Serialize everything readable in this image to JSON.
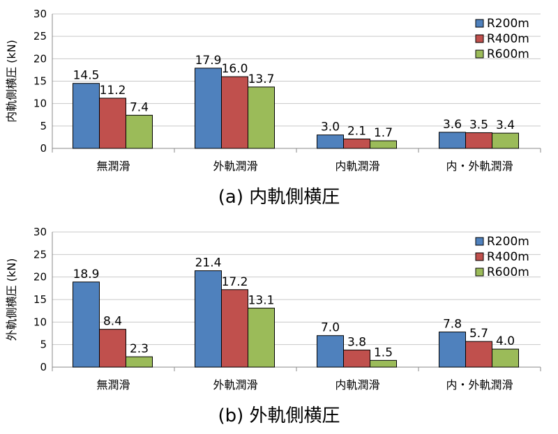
{
  "chart_data": [
    {
      "type": "bar",
      "caption": "(a) 内軌側横圧",
      "ylabel": "内軌側横圧 (kN)",
      "ylim": [
        0,
        30
      ],
      "yticks": [
        "0",
        "5",
        "10",
        "15",
        "20",
        "25",
        "30"
      ],
      "categories": [
        "無潤滑",
        "外軌潤滑",
        "内軌潤滑",
        "内・外軌潤滑"
      ],
      "series": [
        {
          "name": "R200m",
          "color": "#4f81bd",
          "values": [
            14.5,
            17.9,
            3.0,
            3.6
          ],
          "labels": [
            "14.5",
            "17.9",
            "3.0",
            "3.6"
          ]
        },
        {
          "name": "R400m",
          "color": "#c0504d",
          "values": [
            11.2,
            16.0,
            2.1,
            3.5
          ],
          "labels": [
            "11.2",
            "16.0",
            "2.1",
            "3.5"
          ]
        },
        {
          "name": "R600m",
          "color": "#9bbb59",
          "values": [
            7.4,
            13.7,
            1.7,
            3.4
          ],
          "labels": [
            "7.4",
            "13.7",
            "1.7",
            "3.4"
          ]
        }
      ],
      "grid": true,
      "legend": "top-right"
    },
    {
      "type": "bar",
      "caption": "(b) 外軌側横圧",
      "ylabel": "外軌側横圧 (kN)",
      "ylim": [
        0,
        30
      ],
      "yticks": [
        "0",
        "5",
        "10",
        "15",
        "20",
        "25",
        "30"
      ],
      "categories": [
        "無潤滑",
        "外軌潤滑",
        "内軌潤滑",
        "内・外軌潤滑"
      ],
      "series": [
        {
          "name": "R200m",
          "color": "#4f81bd",
          "values": [
            18.9,
            21.4,
            7.0,
            7.8
          ],
          "labels": [
            "18.9",
            "21.4",
            "7.0",
            "7.8"
          ]
        },
        {
          "name": "R400m",
          "color": "#c0504d",
          "values": [
            8.4,
            17.2,
            3.8,
            5.7
          ],
          "labels": [
            "8.4",
            "17.2",
            "3.8",
            "5.7"
          ]
        },
        {
          "name": "R600m",
          "color": "#9bbb59",
          "values": [
            2.3,
            13.1,
            1.5,
            4.0
          ],
          "labels": [
            "2.3",
            "13.1",
            "1.5",
            "4.0"
          ]
        }
      ],
      "grid": true,
      "legend": "top-right"
    }
  ]
}
